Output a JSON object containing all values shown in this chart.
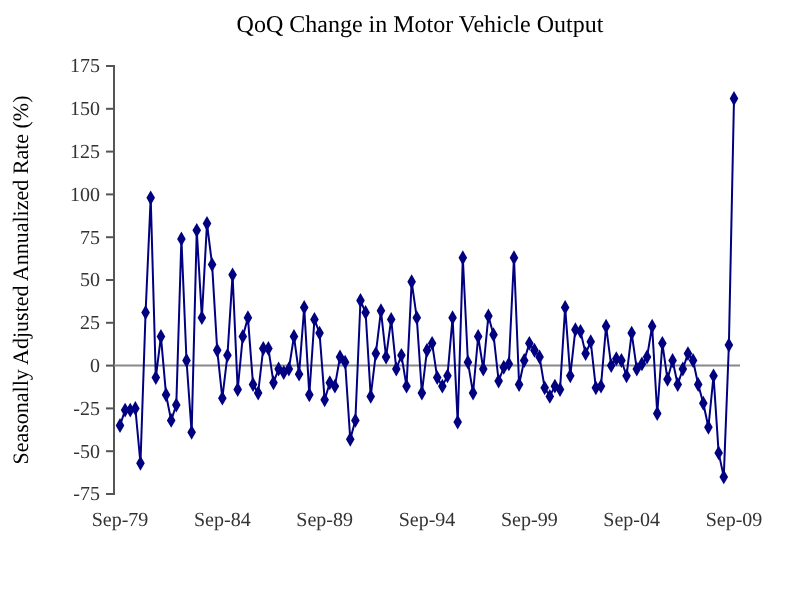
{
  "chart_data": {
    "type": "line",
    "title": "QoQ Change in Motor Vehicle Output",
    "ylabel": "Seasonally Adjusted Annualized Rate (%)",
    "categories": [
      "Sep-79",
      null,
      null,
      null,
      null,
      null,
      null,
      null,
      null,
      null,
      null,
      null,
      null,
      null,
      null,
      null,
      null,
      null,
      null,
      null,
      "Sep-84",
      null,
      null,
      null,
      null,
      null,
      null,
      null,
      null,
      null,
      null,
      null,
      null,
      null,
      null,
      null,
      null,
      null,
      null,
      null,
      "Sep-89",
      null,
      null,
      null,
      null,
      null,
      null,
      null,
      null,
      null,
      null,
      null,
      null,
      null,
      null,
      null,
      null,
      null,
      null,
      null,
      "Sep-94",
      null,
      null,
      null,
      null,
      null,
      null,
      null,
      null,
      null,
      null,
      null,
      null,
      null,
      null,
      null,
      null,
      null,
      null,
      null,
      "Sep-99",
      null,
      null,
      null,
      null,
      null,
      null,
      null,
      null,
      null,
      null,
      null,
      null,
      null,
      null,
      null,
      null,
      null,
      null,
      null,
      "Sep-04",
      null,
      null,
      null,
      null,
      null,
      null,
      null,
      null,
      null,
      null,
      null,
      null,
      null,
      null,
      null,
      null,
      null,
      null,
      null,
      "Sep-09"
    ],
    "series": [
      {
        "color": "#000080",
        "values": [
          -35,
          -26,
          -26,
          -25,
          -57,
          31,
          98,
          -7,
          17,
          -17,
          -32,
          -23,
          74,
          3,
          -39,
          79,
          28,
          83,
          59,
          9,
          -19,
          6,
          53,
          -14,
          17,
          28,
          -11,
          -16,
          10,
          10,
          -10,
          -2,
          -4,
          -2,
          17,
          -5,
          34,
          -17,
          27,
          19,
          -20,
          -10,
          -12,
          5,
          2,
          -43,
          -32,
          38,
          31,
          -18,
          7,
          32,
          5,
          27,
          -2,
          6,
          -12,
          49,
          28,
          -16,
          9,
          13,
          -7,
          -12,
          -6,
          28,
          -33,
          63,
          2,
          -16,
          17,
          -2,
          29,
          18,
          -9,
          -1,
          1,
          63,
          -11,
          3,
          13,
          9,
          5,
          -13,
          -18,
          -12,
          -14,
          34,
          -6,
          21,
          20,
          7,
          14,
          -13,
          -12,
          23,
          0,
          4,
          3,
          -6,
          19,
          -2,
          1,
          5,
          23,
          -28,
          13,
          -8,
          3,
          -11,
          -2,
          7,
          3,
          -11,
          -22,
          -36,
          -6,
          -51,
          -65,
          12,
          156
        ]
      }
    ],
    "ylim": [
      -75,
      175
    ],
    "yticks": [
      -75,
      -50,
      -25,
      0,
      25,
      50,
      75,
      100,
      125,
      150,
      175
    ],
    "marker": "diamond",
    "line_style": "solid"
  }
}
